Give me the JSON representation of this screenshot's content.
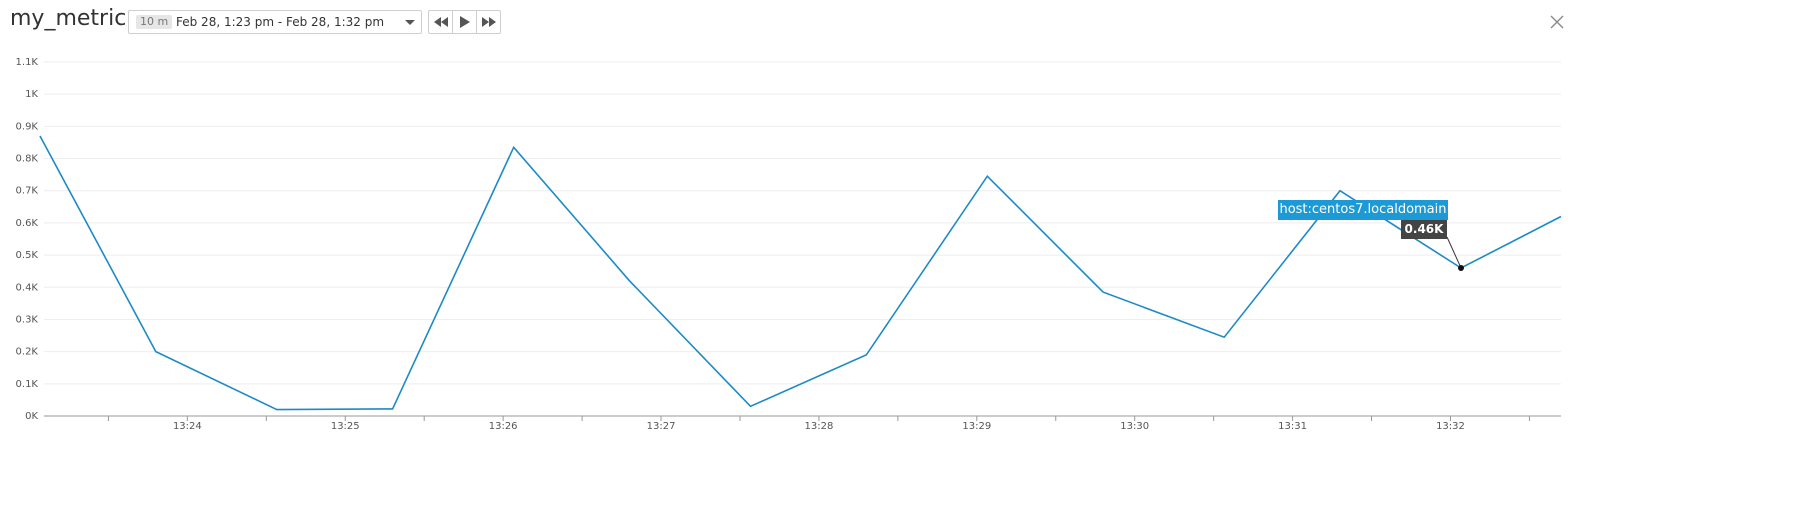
{
  "header": {
    "title": "my_metric",
    "time_picker": {
      "span": "10 m",
      "range": "Feb 28, 1:23 pm - Feb 28, 1:32 pm"
    },
    "playback_buttons": [
      "rewind",
      "play",
      "fast-forward"
    ]
  },
  "tooltip": {
    "host": "host:centos7.localdomain",
    "value": "0.46K"
  },
  "colors": {
    "series": "#1d8ac7",
    "tooltip_host_bg": "#1d9ad6",
    "tooltip_value_bg": "#444444",
    "grid": "#eeeeee"
  },
  "chart_data": {
    "type": "line",
    "title": "",
    "xlabel": "",
    "ylabel": "",
    "x_ticks": [
      "13:24",
      "13:25",
      "13:26",
      "13:27",
      "13:28",
      "13:29",
      "13:30",
      "13:31",
      "13:32"
    ],
    "y_ticks": [
      "0K",
      "0.1K",
      "0.2K",
      "0.3K",
      "0.4K",
      "0.5K",
      "0.6K",
      "0.7K",
      "0.8K",
      "0.9K",
      "1K",
      "1.1K"
    ],
    "ylim": [
      0,
      1100
    ],
    "xlim": [
      "13:23:04",
      "13:32:42"
    ],
    "grid": true,
    "series": [
      {
        "name": "host:centos7.localdomain",
        "x": [
          "13:23:04",
          "13:23:48",
          "13:24:34",
          "13:25:18",
          "13:26:04",
          "13:26:48",
          "13:27:34",
          "13:28:18",
          "13:29:04",
          "13:29:48",
          "13:30:34",
          "13:31:18",
          "13:32:04",
          "13:32:42"
        ],
        "values": [
          870,
          200,
          20,
          22,
          835,
          420,
          30,
          190,
          745,
          385,
          245,
          700,
          460,
          620
        ]
      }
    ],
    "hover_point": {
      "x": "13:32:04",
      "value": 460
    }
  }
}
